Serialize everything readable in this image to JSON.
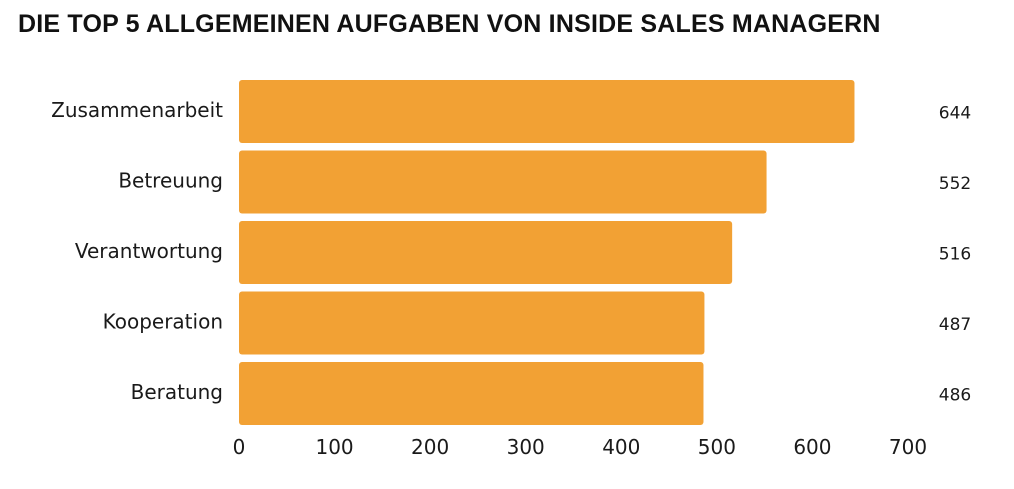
{
  "chart_data": {
    "type": "bar",
    "orientation": "horizontal",
    "title": "DIE TOP 5 ALLGEMEINEN AUFGABEN VON INSIDE SALES MANAGERN",
    "categories": [
      "Zusammenarbeit",
      "Betreuung",
      "Verantwortung",
      "Kooperation",
      "Beratung"
    ],
    "values": [
      644,
      552,
      516,
      487,
      486
    ],
    "value_labels": [
      "644",
      "552",
      "516",
      "487",
      "486"
    ],
    "xlim": [
      0,
      700
    ],
    "xticks": [
      "0",
      "100",
      "200",
      "300",
      "400",
      "500",
      "600",
      "700"
    ],
    "xlabel": "",
    "ylabel": "",
    "grid": false,
    "bar_color": "#F2A134"
  }
}
